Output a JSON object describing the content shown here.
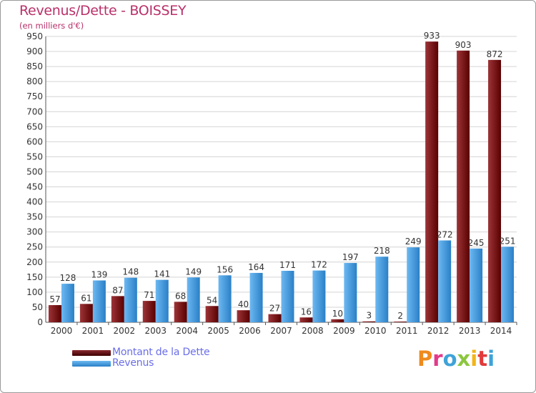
{
  "header": {
    "title": "Revenus/Dette - BOISSEY",
    "subtitle": "(en milliers d'€)"
  },
  "colors": {
    "dette_top": "#8a2a30",
    "dette_bottom": "#560000",
    "revenus_top": "#60b0ee",
    "revenus_bottom": "#2a7ec2",
    "grid": "#d4d4d4",
    "title": "#b9306a",
    "legend_text": "#6a6ee8"
  },
  "chart_data": {
    "type": "bar",
    "title": "Revenus/Dette - BOISSEY",
    "subtitle": "(en milliers d'€)",
    "xlabel": "",
    "ylabel": "",
    "ylim": [
      0,
      950
    ],
    "yticks": [
      0,
      50,
      100,
      150,
      200,
      250,
      300,
      350,
      400,
      450,
      500,
      550,
      600,
      650,
      700,
      750,
      800,
      850,
      900,
      950
    ],
    "grid": true,
    "categories": [
      "2000",
      "2001",
      "2002",
      "2003",
      "2004",
      "2005",
      "2006",
      "2007",
      "2008",
      "2009",
      "2010",
      "2011",
      "2012",
      "2013",
      "2014"
    ],
    "series": [
      {
        "name": "Montant de la Dette",
        "values": [
          57,
          61,
          87,
          71,
          68,
          54,
          40,
          27,
          16,
          10,
          3,
          2,
          933,
          903,
          872
        ]
      },
      {
        "name": "Revenus",
        "values": [
          128,
          139,
          148,
          141,
          149,
          156,
          164,
          171,
          172,
          197,
          218,
          249,
          272,
          245,
          251
        ]
      }
    ],
    "legend_position": "bottom-left"
  },
  "legend": {
    "items": [
      {
        "label": "Montant de la Dette"
      },
      {
        "label": "Revenus"
      }
    ]
  },
  "logo": {
    "letters": [
      "P",
      "r",
      "o",
      "x",
      "i",
      "t",
      "i"
    ],
    "colors": [
      "#ef8a1e",
      "#e23a8a",
      "#3fa3d8",
      "#8cc63f",
      "#f2b418",
      "#e23a3a",
      "#3fa3d8"
    ]
  }
}
